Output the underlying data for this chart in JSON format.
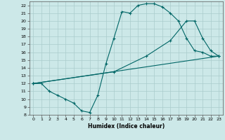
{
  "xlabel": "Humidex (Indice chaleur)",
  "bg_color": "#cce8e8",
  "grid_color": "#aacccc",
  "line_color": "#006666",
  "xlim": [
    -0.5,
    23.5
  ],
  "ylim": [
    8,
    22.5
  ],
  "xticks": [
    0,
    1,
    2,
    3,
    4,
    5,
    6,
    7,
    8,
    9,
    10,
    11,
    12,
    13,
    14,
    15,
    16,
    17,
    18,
    19,
    20,
    21,
    22,
    23
  ],
  "yticks": [
    8,
    9,
    10,
    11,
    12,
    13,
    14,
    15,
    16,
    17,
    18,
    19,
    20,
    21,
    22
  ],
  "line1_x": [
    0,
    1,
    2,
    3,
    4,
    5,
    6,
    7,
    8,
    9,
    10,
    11,
    12,
    13,
    14,
    15,
    16,
    17,
    18,
    19,
    20,
    21,
    22,
    23
  ],
  "line1_y": [
    12,
    12,
    11,
    10.5,
    10,
    9.5,
    8.5,
    8.3,
    10.5,
    14.5,
    17.8,
    21.2,
    21.0,
    22.0,
    22.2,
    22.2,
    21.8,
    21.0,
    20.0,
    17.8,
    16.2,
    16.0,
    15.5,
    15.5
  ],
  "line2_x": [
    0,
    23
  ],
  "line2_y": [
    12,
    15.5
  ],
  "line3_x": [
    0,
    10,
    14,
    17,
    19,
    20,
    21,
    22,
    23
  ],
  "line3_y": [
    12,
    13.5,
    15.5,
    17.5,
    20.0,
    20.0,
    17.8,
    16.2,
    15.5
  ]
}
